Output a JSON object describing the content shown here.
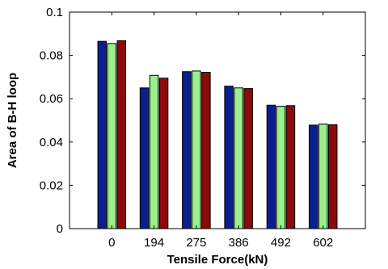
{
  "chart_data": {
    "type": "bar",
    "title": "",
    "xlabel": "Tensile Force(kN)",
    "ylabel": "Area of B-H loop",
    "categories": [
      "0",
      "194",
      "275",
      "386",
      "492",
      "602"
    ],
    "ylim": [
      0,
      0.1
    ],
    "yticks": [
      "0",
      "0.02",
      "0.04",
      "0.06",
      "0.08",
      "0.1"
    ],
    "grid": false,
    "legend": "none",
    "series": [
      {
        "color": "#0a1f8f",
        "values": [
          0.0865,
          0.065,
          0.0725,
          0.0658,
          0.057,
          0.0478
        ]
      },
      {
        "color": "#9af08a",
        "values": [
          0.0855,
          0.0708,
          0.0728,
          0.065,
          0.0565,
          0.0483
        ]
      },
      {
        "color": "#8b0a0a",
        "values": [
          0.0868,
          0.0695,
          0.0722,
          0.0647,
          0.0568,
          0.048
        ]
      }
    ]
  }
}
